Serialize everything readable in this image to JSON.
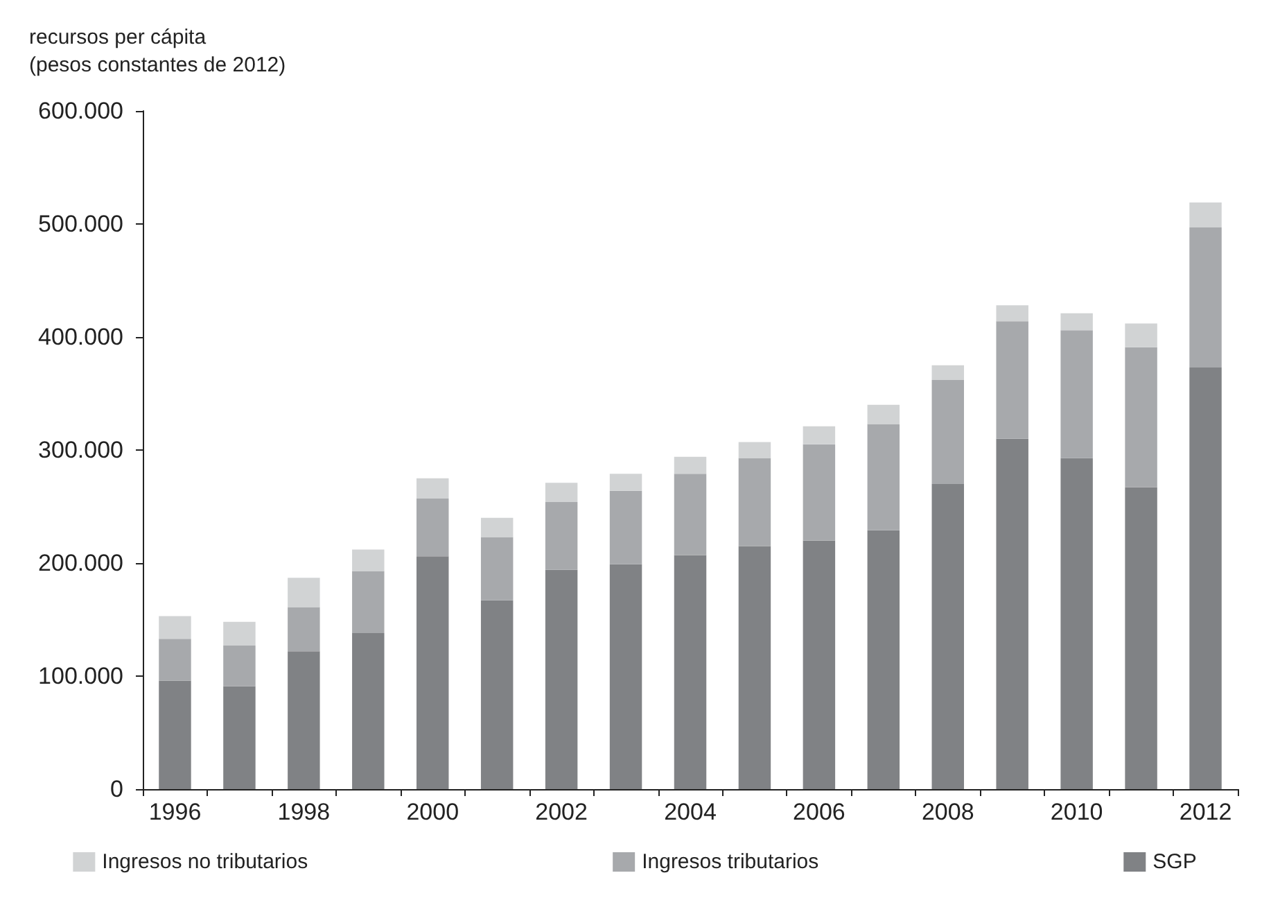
{
  "chart_data": {
    "type": "bar",
    "stacked": true,
    "ylabel": "recursos per cápita\n(pesos constantes de 2012)",
    "categories": [
      "1996",
      null,
      "1998",
      null,
      "2000",
      null,
      "2002",
      null,
      "2004",
      null,
      "2006",
      null,
      "2008",
      null,
      "2010",
      null,
      "2012"
    ],
    "series": [
      {
        "name": "SGP",
        "color": "#808285",
        "values": [
          96000,
          91000,
          122000,
          138000,
          206000,
          167000,
          194000,
          199000,
          207000,
          215000,
          220000,
          229000,
          270000,
          310000,
          293000,
          267000,
          373000
        ]
      },
      {
        "name": "Ingresos tributarios",
        "color": "#a7a9ac",
        "values": [
          37000,
          36000,
          39000,
          55000,
          51000,
          56000,
          60000,
          65000,
          72000,
          78000,
          85000,
          94000,
          92000,
          104000,
          113000,
          124000,
          124000
        ]
      },
      {
        "name": "Ingresos no tributarios",
        "color": "#d1d3d4",
        "values": [
          20000,
          21000,
          26000,
          19000,
          18000,
          17000,
          17000,
          15000,
          15000,
          14000,
          16000,
          17000,
          13000,
          14000,
          15000,
          21000,
          22000
        ]
      }
    ],
    "ylim": [
      0,
      600000
    ],
    "yticks": [
      {
        "value": 0,
        "label": "0"
      },
      {
        "value": 100000,
        "label": "100.000"
      },
      {
        "value": 200000,
        "label": "200.000"
      },
      {
        "value": 300000,
        "label": "300.000"
      },
      {
        "value": 400000,
        "label": "400.000"
      },
      {
        "value": 500000,
        "label": "500.000"
      },
      {
        "value": 600000,
        "label": "600.000"
      }
    ],
    "grid": false,
    "legend": "bottom"
  }
}
